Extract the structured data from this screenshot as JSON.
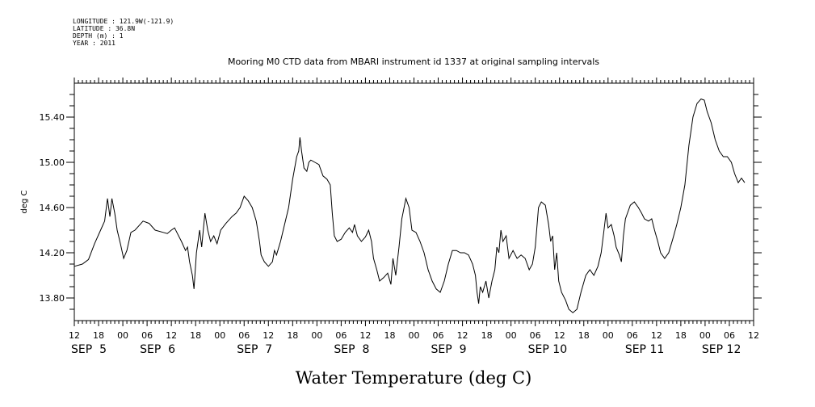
{
  "header": {
    "longitude": "LONGITUDE : 121.9W(-121.9)",
    "latitude": "LATITUDE : 36.8N",
    "depth": "DEPTH (m) : 1",
    "year": "YEAR : 2011"
  },
  "chart_data": {
    "type": "line",
    "title": "Mooring M0 CTD data from MBARI instrument id 1337 at original sampling intervals",
    "xlabel": "Water Temperature (deg C)",
    "ylabel": "deg C",
    "x_unit": "hours since 2011-09-05 12:00",
    "xlim": [
      0,
      168
    ],
    "ylim": [
      13.6,
      15.7
    ],
    "y_ticks": [
      13.8,
      14.2,
      14.6,
      15.0,
      15.4
    ],
    "y_tick_labels": [
      "13.80",
      "14.20",
      "14.60",
      "15.00",
      "15.40"
    ],
    "x_hour_ticks": [
      {
        "h": 0,
        "label": "12"
      },
      {
        "h": 6,
        "label": "18"
      },
      {
        "h": 12,
        "label": "00"
      },
      {
        "h": 18,
        "label": "06"
      },
      {
        "h": 24,
        "label": "12"
      },
      {
        "h": 30,
        "label": "18"
      },
      {
        "h": 36,
        "label": "00"
      },
      {
        "h": 42,
        "label": "06"
      },
      {
        "h": 48,
        "label": "12"
      },
      {
        "h": 54,
        "label": "18"
      },
      {
        "h": 60,
        "label": "00"
      },
      {
        "h": 66,
        "label": "06"
      },
      {
        "h": 72,
        "label": "12"
      },
      {
        "h": 78,
        "label": "18"
      },
      {
        "h": 84,
        "label": "00"
      },
      {
        "h": 90,
        "label": "06"
      },
      {
        "h": 96,
        "label": "12"
      },
      {
        "h": 102,
        "label": "18"
      },
      {
        "h": 108,
        "label": "00"
      },
      {
        "h": 114,
        "label": "06"
      },
      {
        "h": 120,
        "label": "12"
      },
      {
        "h": 126,
        "label": "18"
      },
      {
        "h": 132,
        "label": "00"
      },
      {
        "h": 138,
        "label": "06"
      },
      {
        "h": 144,
        "label": "12"
      },
      {
        "h": 150,
        "label": "18"
      },
      {
        "h": 156,
        "label": "00"
      },
      {
        "h": 162,
        "label": "06"
      },
      {
        "h": 168,
        "label": "12"
      }
    ],
    "x_day_labels": [
      {
        "h": 0,
        "label": "SEP  5"
      },
      {
        "h": 17,
        "label": "SEP  6"
      },
      {
        "h": 41,
        "label": "SEP  7"
      },
      {
        "h": 65,
        "label": "SEP  8"
      },
      {
        "h": 89,
        "label": "SEP  9"
      },
      {
        "h": 113,
        "label": "SEP 10"
      },
      {
        "h": 137,
        "label": "SEP 11"
      },
      {
        "h": 156,
        "label": "SEP 12"
      }
    ],
    "series": [
      {
        "color": "#000000",
        "points": [
          [
            0,
            14.08
          ],
          [
            2,
            14.1
          ],
          [
            3.5,
            14.14
          ],
          [
            5,
            14.28
          ],
          [
            6.5,
            14.4
          ],
          [
            7.5,
            14.48
          ],
          [
            8.2,
            14.68
          ],
          [
            8.8,
            14.52
          ],
          [
            9.3,
            14.68
          ],
          [
            10,
            14.55
          ],
          [
            10.6,
            14.4
          ],
          [
            11.4,
            14.28
          ],
          [
            12.2,
            14.15
          ],
          [
            13,
            14.22
          ],
          [
            14,
            14.38
          ],
          [
            15,
            14.4
          ],
          [
            16,
            14.44
          ],
          [
            17,
            14.48
          ],
          [
            18.5,
            14.46
          ],
          [
            20,
            14.4
          ],
          [
            22,
            14.38
          ],
          [
            23,
            14.37
          ],
          [
            24,
            14.4
          ],
          [
            24.8,
            14.42
          ],
          [
            25.5,
            14.37
          ],
          [
            26.5,
            14.3
          ],
          [
            27.5,
            14.22
          ],
          [
            28,
            14.25
          ],
          [
            28.5,
            14.12
          ],
          [
            29.2,
            14.0
          ],
          [
            29.6,
            13.88
          ],
          [
            30.2,
            14.2
          ],
          [
            31,
            14.4
          ],
          [
            31.5,
            14.25
          ],
          [
            32.3,
            14.55
          ],
          [
            33,
            14.4
          ],
          [
            33.7,
            14.3
          ],
          [
            34.5,
            14.35
          ],
          [
            35.3,
            14.28
          ],
          [
            36.2,
            14.4
          ],
          [
            37.5,
            14.46
          ],
          [
            39,
            14.52
          ],
          [
            40,
            14.55
          ],
          [
            41,
            14.6
          ],
          [
            42,
            14.7
          ],
          [
            43,
            14.66
          ],
          [
            44,
            14.6
          ],
          [
            45,
            14.48
          ],
          [
            45.8,
            14.3
          ],
          [
            46.2,
            14.18
          ],
          [
            47,
            14.12
          ],
          [
            48,
            14.08
          ],
          [
            49,
            14.12
          ],
          [
            49.5,
            14.22
          ],
          [
            50,
            14.18
          ],
          [
            51,
            14.3
          ],
          [
            52,
            14.45
          ],
          [
            53,
            14.6
          ],
          [
            54,
            14.85
          ],
          [
            55,
            15.05
          ],
          [
            55.5,
            15.1
          ],
          [
            55.8,
            15.22
          ],
          [
            56.2,
            15.1
          ],
          [
            56.8,
            14.95
          ],
          [
            57.5,
            14.92
          ],
          [
            58,
            15.0
          ],
          [
            58.5,
            15.02
          ],
          [
            59.5,
            15.0
          ],
          [
            60.5,
            14.98
          ],
          [
            61.5,
            14.88
          ],
          [
            62.5,
            14.85
          ],
          [
            63.3,
            14.8
          ],
          [
            63.8,
            14.55
          ],
          [
            64.3,
            14.35
          ],
          [
            65,
            14.3
          ],
          [
            66,
            14.32
          ],
          [
            67,
            14.38
          ],
          [
            68,
            14.42
          ],
          [
            68.8,
            14.38
          ],
          [
            69.3,
            14.45
          ],
          [
            70,
            14.35
          ],
          [
            71,
            14.3
          ],
          [
            72,
            14.34
          ],
          [
            72.8,
            14.4
          ],
          [
            73.5,
            14.3
          ],
          [
            74,
            14.15
          ],
          [
            74.8,
            14.05
          ],
          [
            75.5,
            13.95
          ],
          [
            76.5,
            13.98
          ],
          [
            77.5,
            14.02
          ],
          [
            78.3,
            13.92
          ],
          [
            78.8,
            14.15
          ],
          [
            79.5,
            14.0
          ],
          [
            80.3,
            14.25
          ],
          [
            81,
            14.5
          ],
          [
            82,
            14.68
          ],
          [
            82.8,
            14.6
          ],
          [
            83.5,
            14.4
          ],
          [
            84.5,
            14.38
          ],
          [
            85.5,
            14.3
          ],
          [
            86.5,
            14.2
          ],
          [
            87.5,
            14.05
          ],
          [
            88.5,
            13.95
          ],
          [
            89.5,
            13.88
          ],
          [
            90.5,
            13.85
          ],
          [
            91.5,
            13.95
          ],
          [
            92.5,
            14.1
          ],
          [
            93.5,
            14.22
          ],
          [
            94.5,
            14.22
          ],
          [
            95.5,
            14.2
          ],
          [
            96.5,
            14.2
          ],
          [
            97.5,
            14.18
          ],
          [
            98.5,
            14.1
          ],
          [
            99.2,
            14.0
          ],
          [
            99.6,
            13.85
          ],
          [
            100,
            13.75
          ],
          [
            100.4,
            13.9
          ],
          [
            101,
            13.85
          ],
          [
            101.8,
            13.95
          ],
          [
            102.5,
            13.8
          ],
          [
            103.3,
            13.95
          ],
          [
            104,
            14.05
          ],
          [
            104.5,
            14.25
          ],
          [
            105,
            14.2
          ],
          [
            105.5,
            14.4
          ],
          [
            106,
            14.3
          ],
          [
            106.8,
            14.35
          ],
          [
            107.5,
            14.15
          ],
          [
            108.5,
            14.22
          ],
          [
            109.5,
            14.15
          ],
          [
            110.5,
            14.18
          ],
          [
            111.5,
            14.15
          ],
          [
            112.5,
            14.05
          ],
          [
            113.3,
            14.1
          ],
          [
            114,
            14.25
          ],
          [
            114.8,
            14.6
          ],
          [
            115.5,
            14.65
          ],
          [
            116.5,
            14.62
          ],
          [
            117.3,
            14.45
          ],
          [
            117.8,
            14.3
          ],
          [
            118.3,
            14.35
          ],
          [
            118.8,
            14.05
          ],
          [
            119.3,
            14.2
          ],
          [
            119.8,
            13.95
          ],
          [
            120.5,
            13.85
          ],
          [
            121.5,
            13.78
          ],
          [
            122.3,
            13.7
          ],
          [
            123.3,
            13.67
          ],
          [
            124.3,
            13.7
          ],
          [
            125.3,
            13.85
          ],
          [
            126.5,
            14.0
          ],
          [
            127.5,
            14.05
          ],
          [
            128.5,
            14.0
          ],
          [
            129.5,
            14.08
          ],
          [
            130.3,
            14.2
          ],
          [
            131,
            14.4
          ],
          [
            131.5,
            14.55
          ],
          [
            132,
            14.42
          ],
          [
            132.8,
            14.45
          ],
          [
            133.5,
            14.35
          ],
          [
            134,
            14.25
          ],
          [
            134.8,
            14.18
          ],
          [
            135.3,
            14.12
          ],
          [
            135.8,
            14.35
          ],
          [
            136.3,
            14.5
          ],
          [
            136.8,
            14.55
          ],
          [
            137.5,
            14.62
          ],
          [
            138.5,
            14.65
          ],
          [
            139.5,
            14.6
          ],
          [
            140.3,
            14.55
          ],
          [
            141,
            14.5
          ],
          [
            142,
            14.48
          ],
          [
            142.8,
            14.5
          ],
          [
            143.5,
            14.4
          ],
          [
            144.3,
            14.3
          ],
          [
            145,
            14.2
          ],
          [
            146,
            14.15
          ],
          [
            147,
            14.2
          ],
          [
            148,
            14.32
          ],
          [
            149,
            14.45
          ],
          [
            150,
            14.6
          ],
          [
            151,
            14.8
          ],
          [
            152,
            15.15
          ],
          [
            153,
            15.4
          ],
          [
            154,
            15.52
          ],
          [
            155,
            15.56
          ],
          [
            155.8,
            15.55
          ],
          [
            156.5,
            15.45
          ],
          [
            157.5,
            15.35
          ],
          [
            158.5,
            15.2
          ],
          [
            159.5,
            15.1
          ],
          [
            160.5,
            15.05
          ],
          [
            161.5,
            15.05
          ],
          [
            162.5,
            15.0
          ],
          [
            163.3,
            14.9
          ],
          [
            164.2,
            14.82
          ],
          [
            165,
            14.86
          ],
          [
            165.8,
            14.82
          ]
        ]
      }
    ]
  }
}
